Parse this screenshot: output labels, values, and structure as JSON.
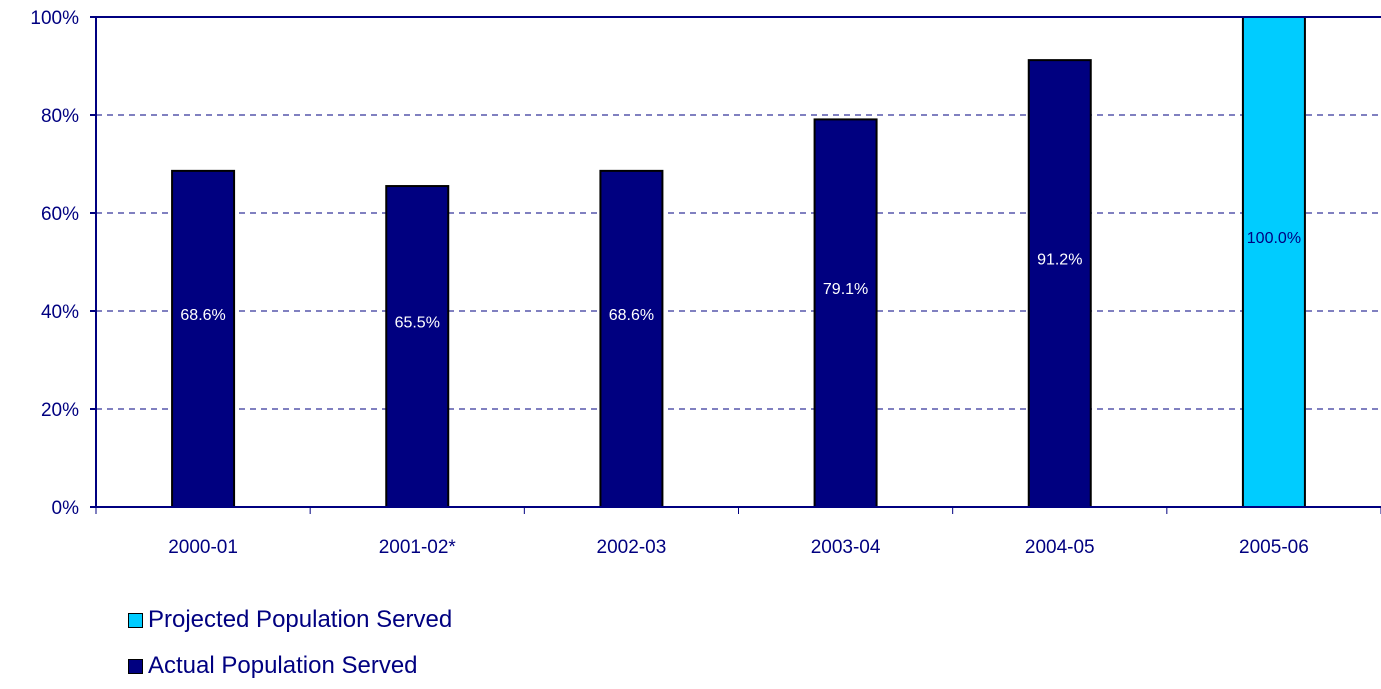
{
  "chart_data": {
    "type": "bar",
    "categories": [
      "2000-01",
      "2001-02*",
      "2002-03",
      "2003-04",
      "2004-05",
      "2005-06"
    ],
    "series": [
      {
        "name": "Actual Population Served",
        "color": "#000080",
        "values": [
          68.6,
          65.5,
          68.6,
          79.1,
          91.2,
          null
        ],
        "labels": [
          "68.6%",
          "65.5%",
          "68.6%",
          "79.1%",
          "91.2%",
          ""
        ]
      },
      {
        "name": "Projected Population Served",
        "color": "#00CCFF",
        "values": [
          null,
          null,
          null,
          null,
          null,
          100.0
        ],
        "labels": [
          "",
          "",
          "",
          "",
          "",
          "100.0%"
        ]
      }
    ],
    "ylim": [
      0,
      100
    ],
    "yticks": [
      "0%",
      "20%",
      "40%",
      "60%",
      "80%",
      "100%"
    ],
    "grid": true,
    "legend_position": "bottom-left"
  },
  "legend": [
    {
      "label": "Projected Population Served",
      "color": "#00CCFF"
    },
    {
      "label": "Actual Population Served",
      "color": "#000080"
    }
  ]
}
